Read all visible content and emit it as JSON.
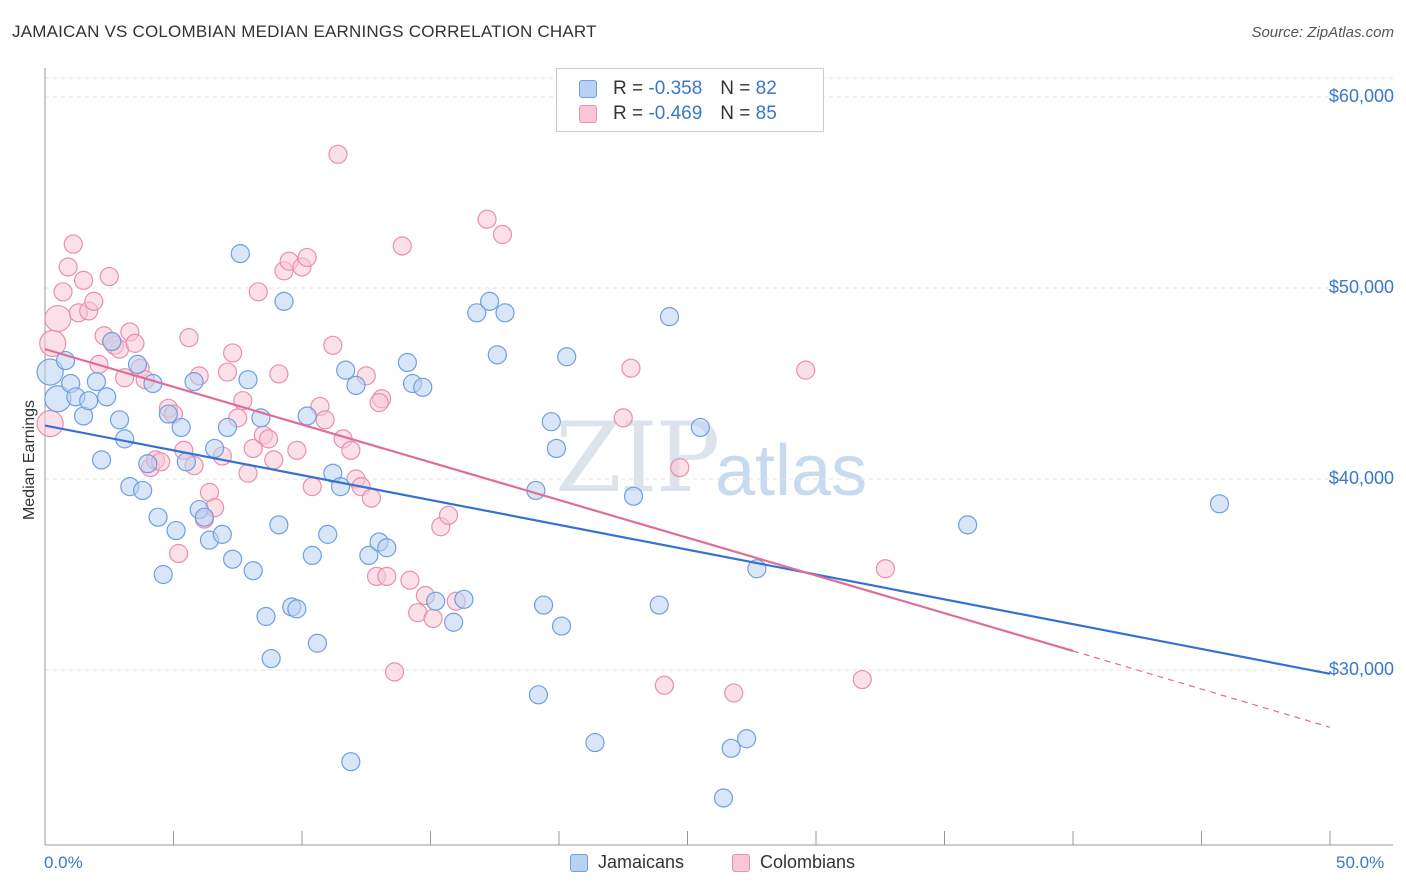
{
  "header": {
    "title": "JAMAICAN VS COLOMBIAN MEDIAN EARNINGS CORRELATION CHART",
    "source": "Source: ZipAtlas.com"
  },
  "watermark": {
    "zip": "ZIP",
    "atlas": "atlas"
  },
  "legend_top": {
    "rows": [
      {
        "r_label": "R =",
        "r_value": "-0.358",
        "n_label": "N =",
        "n_value": "82"
      },
      {
        "r_label": "R =",
        "r_value": "-0.469",
        "n_label": "N =",
        "n_value": "85"
      }
    ]
  },
  "legend_bottom": {
    "items": [
      "Jamaicans",
      "Colombians"
    ]
  },
  "axis": {
    "ylabel": "Median Earnings",
    "x_min_label": "0.0%",
    "x_max_label": "50.0%",
    "y_ticks": [
      "$60,000",
      "$50,000",
      "$40,000",
      "$30,000"
    ]
  },
  "colors": {
    "jamaicans_fill": "#b9d1f3",
    "jamaicans_stroke": "#6f9fe0",
    "jamaicans_line": "#3572cf",
    "colombians_fill": "#f8c6d6",
    "colombians_stroke": "#e890ad",
    "colombians_line": "#e06d98",
    "grid": "#e3e3e3",
    "axis_text": "#3a78c9"
  },
  "chart_data": {
    "type": "scatter",
    "title": "JAMAICAN VS COLOMBIAN MEDIAN EARNINGS CORRELATION CHART",
    "xlabel": "",
    "ylabel": "Median Earnings",
    "xlim": [
      0,
      50
    ],
    "ylim": [
      19000,
      62000
    ],
    "x_unit": "%",
    "grid": true,
    "legend": "bottom-center",
    "series": [
      {
        "name": "Jamaicans",
        "r": -0.358,
        "n": 82,
        "trend": {
          "x": [
            0,
            50
          ],
          "y": [
            42800,
            29800
          ]
        },
        "points": [
          [
            0.2,
            45600
          ],
          [
            0.5,
            44200
          ],
          [
            0.8,
            46200
          ],
          [
            1.0,
            45000
          ],
          [
            1.2,
            44300
          ],
          [
            1.5,
            43300
          ],
          [
            1.7,
            44100
          ],
          [
            2.0,
            45100
          ],
          [
            2.2,
            41000
          ],
          [
            2.4,
            44300
          ],
          [
            2.6,
            47200
          ],
          [
            2.9,
            43100
          ],
          [
            3.1,
            42100
          ],
          [
            3.3,
            39600
          ],
          [
            3.6,
            46000
          ],
          [
            3.8,
            39400
          ],
          [
            4.0,
            40800
          ],
          [
            4.2,
            45000
          ],
          [
            4.4,
            38000
          ],
          [
            4.6,
            35000
          ],
          [
            4.8,
            43400
          ],
          [
            5.1,
            37300
          ],
          [
            5.3,
            42700
          ],
          [
            5.5,
            40900
          ],
          [
            5.8,
            45100
          ],
          [
            6.0,
            38400
          ],
          [
            6.2,
            38000
          ],
          [
            6.4,
            36800
          ],
          [
            6.6,
            41600
          ],
          [
            6.9,
            37100
          ],
          [
            7.1,
            42700
          ],
          [
            7.3,
            35800
          ],
          [
            7.6,
            51800
          ],
          [
            7.9,
            45200
          ],
          [
            8.1,
            35200
          ],
          [
            8.4,
            43200
          ],
          [
            8.6,
            32800
          ],
          [
            8.8,
            30600
          ],
          [
            9.1,
            37600
          ],
          [
            9.3,
            49300
          ],
          [
            9.6,
            33300
          ],
          [
            9.8,
            33200
          ],
          [
            10.2,
            43300
          ],
          [
            10.4,
            36000
          ],
          [
            10.6,
            31400
          ],
          [
            11.0,
            37100
          ],
          [
            11.2,
            40300
          ],
          [
            11.5,
            39600
          ],
          [
            11.7,
            45700
          ],
          [
            11.9,
            25200
          ],
          [
            12.1,
            44900
          ],
          [
            12.6,
            36000
          ],
          [
            13.0,
            36700
          ],
          [
            13.3,
            36400
          ],
          [
            14.1,
            46100
          ],
          [
            14.3,
            45000
          ],
          [
            14.7,
            44800
          ],
          [
            15.2,
            33600
          ],
          [
            15.9,
            32500
          ],
          [
            16.3,
            33700
          ],
          [
            16.8,
            48700
          ],
          [
            17.3,
            49300
          ],
          [
            17.6,
            46500
          ],
          [
            17.9,
            48700
          ],
          [
            19.1,
            39400
          ],
          [
            19.2,
            28700
          ],
          [
            19.4,
            33400
          ],
          [
            19.7,
            43000
          ],
          [
            19.9,
            41600
          ],
          [
            20.1,
            32300
          ],
          [
            20.3,
            46400
          ],
          [
            21.4,
            26200
          ],
          [
            22.9,
            39100
          ],
          [
            23.9,
            33400
          ],
          [
            24.3,
            48500
          ],
          [
            26.4,
            23300
          ],
          [
            26.7,
            25900
          ],
          [
            27.3,
            26400
          ],
          [
            27.7,
            35300
          ],
          [
            35.9,
            37600
          ],
          [
            45.7,
            38700
          ],
          [
            25.5,
            42700
          ]
        ]
      },
      {
        "name": "Colombians",
        "r": -0.469,
        "n": 85,
        "trend": {
          "x": [
            0,
            40
          ],
          "y": [
            46800,
            31000
          ]
        },
        "trend_dashed": {
          "x": [
            40,
            50
          ],
          "y": [
            31000,
            27000
          ]
        },
        "points": [
          [
            0.2,
            42900
          ],
          [
            0.3,
            47100
          ],
          [
            0.5,
            48400
          ],
          [
            0.7,
            49800
          ],
          [
            0.9,
            51100
          ],
          [
            1.1,
            52300
          ],
          [
            1.3,
            48700
          ],
          [
            1.5,
            50400
          ],
          [
            1.7,
            48800
          ],
          [
            1.9,
            49300
          ],
          [
            2.1,
            46000
          ],
          [
            2.3,
            47500
          ],
          [
            2.5,
            50600
          ],
          [
            2.7,
            47000
          ],
          [
            2.9,
            46800
          ],
          [
            3.1,
            45300
          ],
          [
            3.3,
            47700
          ],
          [
            3.5,
            47100
          ],
          [
            3.7,
            45800
          ],
          [
            3.9,
            45200
          ],
          [
            4.1,
            40600
          ],
          [
            4.3,
            41000
          ],
          [
            4.5,
            40900
          ],
          [
            4.8,
            43700
          ],
          [
            5.0,
            43400
          ],
          [
            5.2,
            36100
          ],
          [
            5.4,
            41500
          ],
          [
            5.6,
            47400
          ],
          [
            5.8,
            40700
          ],
          [
            6.0,
            45400
          ],
          [
            6.2,
            37900
          ],
          [
            6.4,
            39300
          ],
          [
            6.6,
            38500
          ],
          [
            6.9,
            41200
          ],
          [
            7.1,
            45600
          ],
          [
            7.3,
            46600
          ],
          [
            7.5,
            43200
          ],
          [
            7.7,
            44100
          ],
          [
            7.9,
            40300
          ],
          [
            8.1,
            41600
          ],
          [
            8.3,
            49800
          ],
          [
            8.5,
            42300
          ],
          [
            8.7,
            42100
          ],
          [
            8.9,
            41000
          ],
          [
            9.1,
            45500
          ],
          [
            9.3,
            50900
          ],
          [
            9.5,
            51400
          ],
          [
            9.8,
            41500
          ],
          [
            10.0,
            51100
          ],
          [
            10.2,
            51600
          ],
          [
            10.4,
            39600
          ],
          [
            10.7,
            43800
          ],
          [
            10.9,
            43100
          ],
          [
            11.2,
            47000
          ],
          [
            11.4,
            57000
          ],
          [
            11.6,
            42100
          ],
          [
            11.9,
            41500
          ],
          [
            12.1,
            40000
          ],
          [
            12.3,
            39600
          ],
          [
            12.5,
            45400
          ],
          [
            12.7,
            39000
          ],
          [
            12.9,
            34900
          ],
          [
            13.1,
            44200
          ],
          [
            13.3,
            34900
          ],
          [
            13.6,
            29900
          ],
          [
            13.9,
            52200
          ],
          [
            14.2,
            34700
          ],
          [
            14.5,
            33000
          ],
          [
            14.8,
            33900
          ],
          [
            15.1,
            32700
          ],
          [
            15.4,
            37500
          ],
          [
            15.7,
            38100
          ],
          [
            16.0,
            33600
          ],
          [
            17.2,
            53600
          ],
          [
            17.8,
            52800
          ],
          [
            22.5,
            43200
          ],
          [
            22.8,
            45800
          ],
          [
            24.1,
            29200
          ],
          [
            24.7,
            40600
          ],
          [
            26.8,
            28800
          ],
          [
            29.6,
            45700
          ],
          [
            31.8,
            29500
          ],
          [
            32.7,
            35300
          ],
          [
            2.6,
            47200
          ],
          [
            13.0,
            44000
          ]
        ]
      }
    ]
  }
}
